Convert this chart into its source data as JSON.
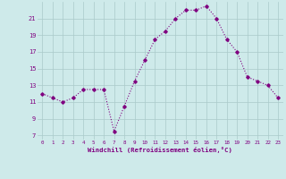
{
  "x": [
    0,
    1,
    2,
    3,
    4,
    5,
    6,
    7,
    8,
    9,
    10,
    11,
    12,
    13,
    14,
    15,
    16,
    17,
    18,
    19,
    20,
    21,
    22,
    23
  ],
  "y": [
    12.0,
    11.5,
    11.0,
    11.5,
    12.5,
    12.5,
    12.5,
    7.5,
    10.5,
    13.5,
    16.0,
    18.5,
    19.5,
    21.0,
    22.0,
    22.0,
    22.5,
    21.0,
    18.5,
    17.0,
    14.0,
    13.5,
    13.0,
    11.5
  ],
  "line_color": "#800080",
  "marker": "D",
  "marker_size": 1.8,
  "bg_color": "#ceeaea",
  "grid_color": "#aacaca",
  "xlabel": "Windchill (Refroidissement éolien,°C)",
  "xlabel_color": "#800080",
  "tick_color": "#800080",
  "yticks": [
    7,
    9,
    11,
    13,
    15,
    17,
    19,
    21
  ],
  "xticks": [
    0,
    1,
    2,
    3,
    4,
    5,
    6,
    7,
    8,
    9,
    10,
    11,
    12,
    13,
    14,
    15,
    16,
    17,
    18,
    19,
    20,
    21,
    22,
    23
  ],
  "xlim": [
    -0.5,
    23.5
  ],
  "ylim": [
    6.5,
    23.0
  ]
}
